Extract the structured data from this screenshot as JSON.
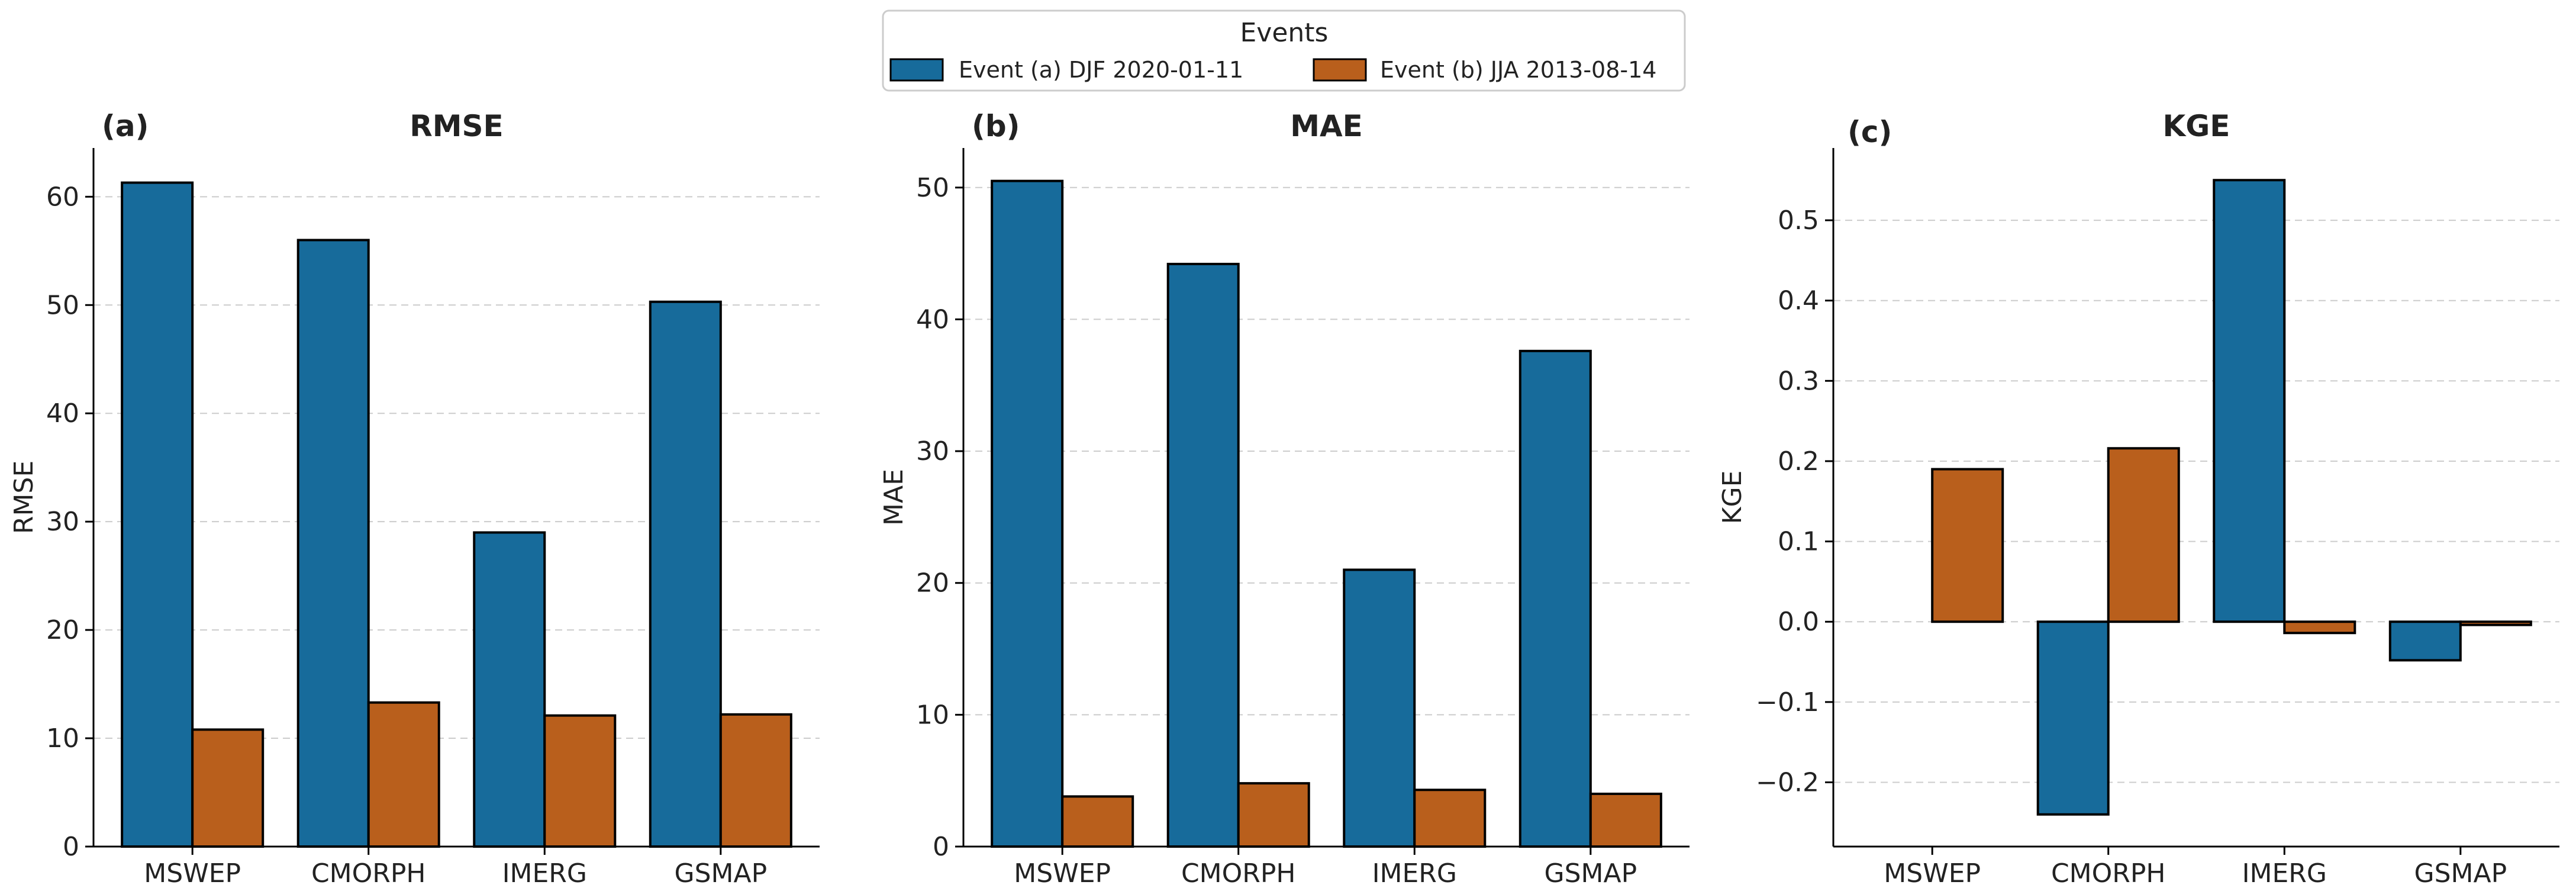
{
  "legend": {
    "title": "Events",
    "entries": [
      {
        "label": "Event (a) DJF 2020-01-11",
        "color": "#176b9b"
      },
      {
        "label": "Event (b) JJA 2013-08-14",
        "color": "#b95f1c"
      }
    ]
  },
  "chart_data": [
    {
      "type": "bar",
      "panel_label": "(a)",
      "title": "RMSE",
      "xlabel": "",
      "ylabel": "RMSE",
      "categories": [
        "MSWEP",
        "CMORPH",
        "IMERG",
        "GSMAP"
      ],
      "ylim": [
        0,
        64.5
      ],
      "yticks": [
        0,
        10,
        20,
        30,
        40,
        50,
        60
      ],
      "grid": true,
      "series": [
        {
          "name": "Event (a) DJF 2020-01-11",
          "values": [
            61.3,
            56.0,
            29.0,
            50.3
          ]
        },
        {
          "name": "Event (b) JJA 2013-08-14",
          "values": [
            10.8,
            13.3,
            12.1,
            12.2
          ]
        }
      ]
    },
    {
      "type": "bar",
      "panel_label": "(b)",
      "title": "MAE",
      "xlabel": "",
      "ylabel": "MAE",
      "categories": [
        "MSWEP",
        "CMORPH",
        "IMERG",
        "GSMAP"
      ],
      "ylim": [
        0,
        53
      ],
      "yticks": [
        0,
        10,
        20,
        30,
        40,
        50
      ],
      "grid": true,
      "series": [
        {
          "name": "Event (a) DJF 2020-01-11",
          "values": [
            50.5,
            44.2,
            21.0,
            37.6
          ]
        },
        {
          "name": "Event (b) JJA 2013-08-14",
          "values": [
            3.8,
            4.8,
            4.3,
            4.0
          ]
        }
      ]
    },
    {
      "type": "bar",
      "panel_label": "(c)",
      "title": "KGE",
      "xlabel": "",
      "ylabel": "KGE",
      "categories": [
        "MSWEP",
        "CMORPH",
        "IMERG",
        "GSMAP"
      ],
      "ylim": [
        -0.28,
        0.59
      ],
      "yticks": [
        -0.2,
        -0.1,
        0.0,
        0.1,
        0.2,
        0.3,
        0.4,
        0.5
      ],
      "ytick_labels": [
        "−0.2",
        "−0.1",
        "0.0",
        "0.1",
        "0.2",
        "0.3",
        "0.4",
        "0.5"
      ],
      "grid": true,
      "series": [
        {
          "name": "Event (a) DJF 2020-01-11",
          "values": [
            null,
            -0.24,
            0.55,
            -0.048
          ]
        },
        {
          "name": "Event (b) JJA 2013-08-14",
          "values": [
            0.19,
            0.216,
            -0.014,
            -0.004
          ]
        }
      ]
    }
  ]
}
